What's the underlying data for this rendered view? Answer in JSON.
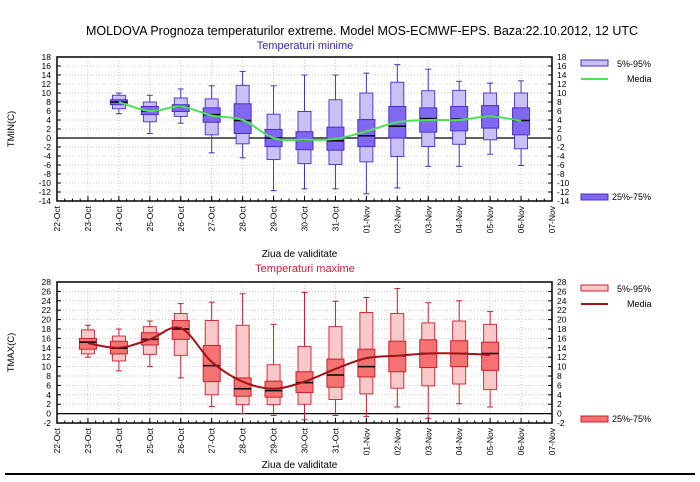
{
  "title": "MOLDOVA  Prognoza temperaturilor extreme.  Model MOS-ECMWF-EPS. Baza:22.10.2012, 12 UTC",
  "chart_data": [
    {
      "type": "box",
      "title": "Temperaturi minime",
      "xlabel": "Ziua de validitate",
      "ylabel": "TMIN(C)",
      "ylim": [
        -14,
        18
      ],
      "yticks": [
        18,
        16,
        14,
        12,
        10,
        8,
        6,
        4,
        2,
        0,
        -2,
        -4,
        -6,
        -8,
        -10,
        -12,
        -14
      ],
      "grid": true,
      "legend_placement": "right",
      "legend": {
        "p5_95": "5%-95%",
        "media": "Media",
        "q25_75": "25%-75%"
      },
      "colors": {
        "outer": "#c9c0f5",
        "inner": "#8068f0",
        "edge": "#4a2ec8",
        "media": "#4fe05a",
        "title": "#3a22c0"
      },
      "categories": [
        "22-Oct",
        "23-Oct",
        "24-Oct",
        "25-Oct",
        "26-Oct",
        "27-Oct",
        "28-Oct",
        "29-Oct",
        "30-Oct",
        "31-Oct",
        "01-Nov",
        "02-Nov",
        "03-Nov",
        "04-Nov",
        "05-Nov",
        "06-Nov",
        "07-Nov"
      ],
      "series": [
        {
          "date": "24-Oct",
          "min": 5.4,
          "p5": 6.5,
          "q25": 7.4,
          "median": 8.0,
          "q75": 8.5,
          "p95": 9.5,
          "max": 10.0,
          "media": 8.0
        },
        {
          "date": "25-Oct",
          "min": 1.0,
          "p5": 3.6,
          "q25": 5.2,
          "median": 6.0,
          "q75": 7.0,
          "p95": 8.0,
          "max": 9.5,
          "media": 6.0
        },
        {
          "date": "26-Oct",
          "min": 3.3,
          "p5": 4.8,
          "q25": 5.9,
          "median": 6.9,
          "q75": 7.4,
          "p95": 8.9,
          "max": 10.9,
          "media": 7.0
        },
        {
          "date": "27-Oct",
          "min": -3.3,
          "p5": 0.7,
          "q25": 3.5,
          "median": 5.2,
          "q75": 6.7,
          "p95": 8.7,
          "max": 11.6,
          "media": 5.0
        },
        {
          "date": "28-Oct",
          "min": -4.4,
          "p5": -1.3,
          "q25": 1.0,
          "median": 3.9,
          "q75": 7.6,
          "p95": 11.7,
          "max": 14.8,
          "media": 4.0
        },
        {
          "date": "29-Oct",
          "min": -11.7,
          "p5": -4.8,
          "q25": -1.9,
          "median": 0.0,
          "q75": 1.9,
          "p95": 5.3,
          "max": 11.6,
          "media": 0.0
        },
        {
          "date": "30-Oct",
          "min": -11.3,
          "p5": -5.7,
          "q25": -2.6,
          "median": -0.5,
          "q75": 1.4,
          "p95": 5.9,
          "max": 14.0,
          "media": -0.4
        },
        {
          "date": "31-Oct",
          "min": -11.3,
          "p5": -5.9,
          "q25": -2.7,
          "median": -0.6,
          "q75": 2.4,
          "p95": 8.5,
          "max": 14.0,
          "media": -0.2
        },
        {
          "date": "01-Nov",
          "min": -12.4,
          "p5": -5.3,
          "q25": -1.9,
          "median": 0.5,
          "q75": 4.1,
          "p95": 10.0,
          "max": 14.4,
          "media": 1.5
        },
        {
          "date": "02-Nov",
          "min": -11.1,
          "p5": -4.1,
          "q25": 0.0,
          "median": 2.6,
          "q75": 7.0,
          "p95": 12.4,
          "max": 16.3,
          "media": 3.5
        },
        {
          "date": "03-Nov",
          "min": -6.3,
          "p5": -1.9,
          "q25": 1.3,
          "median": 4.3,
          "q75": 6.7,
          "p95": 10.5,
          "max": 15.3,
          "media": 4.0
        },
        {
          "date": "04-Nov",
          "min": -6.3,
          "p5": -1.4,
          "q25": 1.6,
          "median": 4.2,
          "q75": 7.0,
          "p95": 10.6,
          "max": 12.6,
          "media": 4.0
        },
        {
          "date": "05-Nov",
          "min": -3.6,
          "p5": -0.4,
          "q25": 2.2,
          "median": 4.8,
          "q75": 7.2,
          "p95": 10.0,
          "max": 12.2,
          "media": 4.8
        },
        {
          "date": "06-Nov",
          "min": -6.1,
          "p5": -2.4,
          "q25": 0.7,
          "median": 3.9,
          "q75": 6.7,
          "p95": 10.0,
          "max": 12.7,
          "media": 3.8
        }
      ]
    },
    {
      "type": "box",
      "title": "Temperaturi maxime",
      "xlabel": "Ziua de validitate",
      "ylabel": "TMAX(C)",
      "ylim": [
        -2,
        28
      ],
      "yticks": [
        28,
        26,
        24,
        22,
        20,
        18,
        16,
        14,
        12,
        10,
        8,
        6,
        4,
        2,
        0,
        -2
      ],
      "grid": true,
      "legend_placement": "right",
      "legend": {
        "p5_95": "5%-95%",
        "media": "Media",
        "q25_75": "25%-75%"
      },
      "colors": {
        "outer": "#f9c9c9",
        "inner": "#f47272",
        "edge": "#c8202e",
        "media": "#a01218",
        "title": "#d0203a"
      },
      "categories": [
        "22-Oct",
        "23-Oct",
        "24-Oct",
        "25-Oct",
        "26-Oct",
        "27-Oct",
        "28-Oct",
        "29-Oct",
        "30-Oct",
        "31-Oct",
        "01-Nov",
        "02-Nov",
        "03-Nov",
        "04-Nov",
        "05-Nov",
        "06-Nov",
        "07-Nov"
      ],
      "series": [
        {
          "date": "23-Oct",
          "min": 12.0,
          "p5": 12.7,
          "q25": 13.7,
          "median": 15.2,
          "q75": 16.0,
          "p95": 17.8,
          "max": 18.8,
          "media": 15.0
        },
        {
          "date": "24-Oct",
          "min": 9.1,
          "p5": 11.2,
          "q25": 12.7,
          "median": 13.9,
          "q75": 15.4,
          "p95": 16.5,
          "max": 18.0,
          "media": 14.0
        },
        {
          "date": "25-Oct",
          "min": 10.0,
          "p5": 12.6,
          "q25": 14.6,
          "median": 15.8,
          "q75": 17.2,
          "p95": 18.5,
          "max": 19.7,
          "media": 15.8
        },
        {
          "date": "26-Oct",
          "min": 7.6,
          "p5": 12.4,
          "q25": 15.8,
          "median": 18.0,
          "q75": 19.8,
          "p95": 21.3,
          "max": 23.4,
          "media": 18.2
        },
        {
          "date": "27-Oct",
          "min": 1.5,
          "p5": 4.0,
          "q25": 6.8,
          "median": 10.2,
          "q75": 14.5,
          "p95": 19.8,
          "max": 23.7,
          "media": 11.0
        },
        {
          "date": "28-Oct",
          "min": 0.0,
          "p5": 1.9,
          "q25": 3.7,
          "median": 5.3,
          "q75": 7.6,
          "p95": 18.8,
          "max": 25.5,
          "media": 6.8
        },
        {
          "date": "29-Oct",
          "min": -0.4,
          "p5": 1.9,
          "q25": 3.5,
          "median": 4.9,
          "q75": 6.9,
          "p95": 10.4,
          "max": 19.0,
          "media": 5.3
        },
        {
          "date": "30-Oct",
          "min": -1.3,
          "p5": 2.0,
          "q25": 4.5,
          "median": 6.6,
          "q75": 8.9,
          "p95": 14.3,
          "max": 25.8,
          "media": 6.8
        },
        {
          "date": "31-Oct",
          "min": -0.4,
          "p5": 3.0,
          "q25": 5.6,
          "median": 8.2,
          "q75": 11.6,
          "p95": 18.5,
          "max": 23.9,
          "media": 9.5
        },
        {
          "date": "01-Nov",
          "min": -0.6,
          "p5": 4.2,
          "q25": 7.8,
          "median": 10.0,
          "q75": 13.7,
          "p95": 21.5,
          "max": 24.7,
          "media": 11.8
        },
        {
          "date": "02-Nov",
          "min": 1.4,
          "p5": 5.4,
          "q25": 8.9,
          "median": 12.3,
          "q75": 15.4,
          "p95": 21.3,
          "max": 26.6,
          "media": 12.3
        },
        {
          "date": "03-Nov",
          "min": -1.0,
          "p5": 5.9,
          "q25": 9.8,
          "median": 12.8,
          "q75": 15.7,
          "p95": 19.3,
          "max": 23.6,
          "media": 12.8
        },
        {
          "date": "04-Nov",
          "min": 2.1,
          "p5": 6.3,
          "q25": 10.0,
          "median": 12.8,
          "q75": 15.5,
          "p95": 19.7,
          "max": 24.0,
          "media": 12.8
        },
        {
          "date": "05-Nov",
          "min": 1.4,
          "p5": 5.1,
          "q25": 9.2,
          "median": 12.8,
          "q75": 15.2,
          "p95": 19.0,
          "max": 21.7,
          "media": 12.5
        }
      ]
    }
  ]
}
